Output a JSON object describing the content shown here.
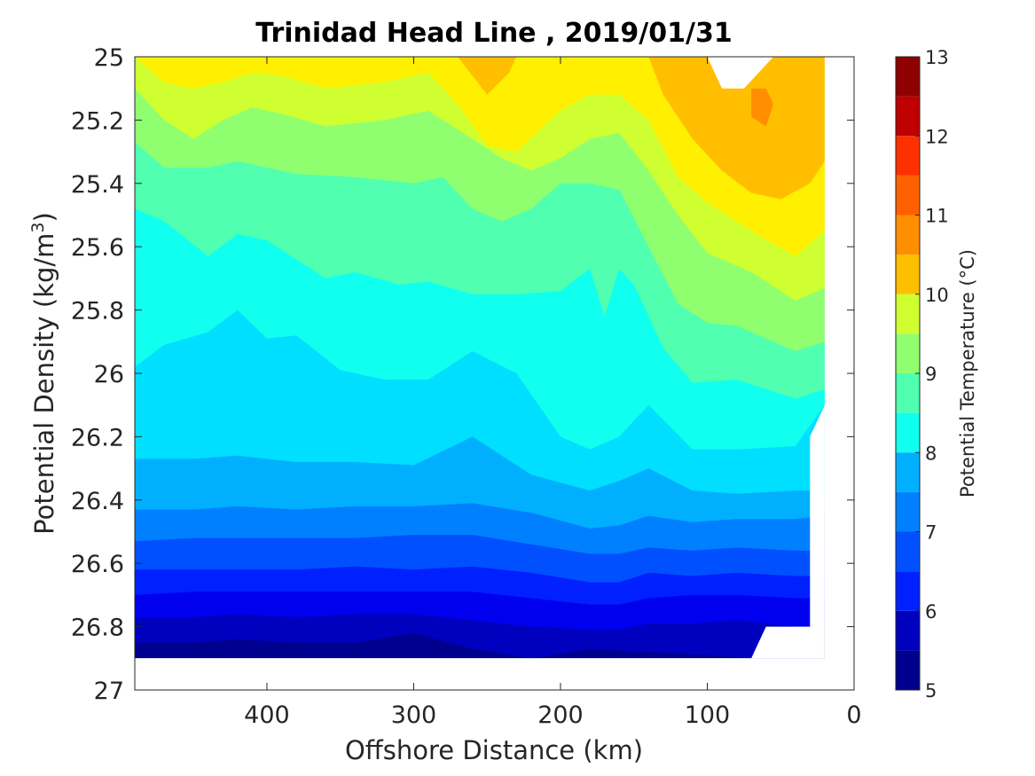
{
  "chart_data": {
    "type": "contour",
    "title": "Trinidad Head Line , 2019/01/31",
    "xlabel": "Offshore Distance (km)",
    "ylabel_main": "Potential Density (kg/m",
    "ylabel_sup": "3",
    "ylabel_tail": ")",
    "colorbar_label": "Potential Temperature (°C)",
    "xlim": [
      490,
      0
    ],
    "x_reversed": true,
    "ylim": [
      25,
      27
    ],
    "y_reversed": true,
    "x_ticks": [
      400,
      300,
      200,
      100,
      0
    ],
    "y_ticks": [
      25,
      25.2,
      25.4,
      25.6,
      25.8,
      26,
      26.2,
      26.4,
      26.6,
      26.8,
      27
    ],
    "y_tick_labels": [
      "25",
      "25.2",
      "25.4",
      "25.6",
      "25.8",
      "26",
      "26.2",
      "26.4",
      "26.6",
      "26.8",
      "27"
    ],
    "colorbar_range": [
      5,
      13
    ],
    "colorbar_ticks": [
      5,
      6,
      7,
      8,
      9,
      10,
      11,
      12,
      13
    ],
    "levels": [
      5,
      5.5,
      6,
      6.5,
      7,
      7.5,
      8,
      8.5,
      9,
      9.5,
      10,
      10.5,
      11,
      11.5,
      12,
      12.5,
      13
    ],
    "level_colors": [
      "#00008f",
      "#0000bf",
      "#0000ef",
      "#0020ff",
      "#0050ff",
      "#0080ff",
      "#00b0ff",
      "#00dfff",
      "#10ffef",
      "#50ffaf",
      "#8fff70",
      "#cfff30",
      "#ffef00",
      "#ffbf00",
      "#ff8f00",
      "#ff6000",
      "#ff3000",
      "#ef0000",
      "#bf0000",
      "#8f0000"
    ],
    "data_extent": {
      "x_min": 20,
      "x_max": 490,
      "y_min": 25,
      "y_max": 26.9
    },
    "isotherms": [
      {
        "value": 5.5,
        "points": [
          [
            490,
            26.85
          ],
          [
            450,
            26.85
          ],
          [
            420,
            26.84
          ],
          [
            380,
            26.85
          ],
          [
            340,
            26.85
          ],
          [
            300,
            26.82
          ],
          [
            260,
            26.87
          ],
          [
            220,
            26.9
          ],
          [
            180,
            26.87
          ],
          [
            140,
            26.88
          ],
          [
            100,
            26.89
          ],
          [
            70,
            26.9
          ],
          [
            20,
            26.9
          ]
        ]
      },
      {
        "value": 6,
        "points": [
          [
            490,
            26.77
          ],
          [
            450,
            26.77
          ],
          [
            420,
            26.76
          ],
          [
            380,
            26.77
          ],
          [
            340,
            26.76
          ],
          [
            300,
            26.76
          ],
          [
            260,
            26.78
          ],
          [
            220,
            26.8
          ],
          [
            180,
            26.81
          ],
          [
            160,
            26.81
          ],
          [
            140,
            26.79
          ],
          [
            110,
            26.79
          ],
          [
            80,
            26.78
          ],
          [
            40,
            26.8
          ],
          [
            20,
            26.8
          ]
        ]
      },
      {
        "value": 6.5,
        "points": [
          [
            490,
            26.7
          ],
          [
            450,
            26.69
          ],
          [
            420,
            26.69
          ],
          [
            380,
            26.69
          ],
          [
            340,
            26.69
          ],
          [
            300,
            26.69
          ],
          [
            260,
            26.69
          ],
          [
            220,
            26.71
          ],
          [
            180,
            26.73
          ],
          [
            160,
            26.73
          ],
          [
            140,
            26.71
          ],
          [
            110,
            26.7
          ],
          [
            80,
            26.7
          ],
          [
            40,
            26.71
          ],
          [
            20,
            26.71
          ]
        ]
      },
      {
        "value": 7,
        "points": [
          [
            490,
            26.62
          ],
          [
            450,
            26.62
          ],
          [
            420,
            26.62
          ],
          [
            380,
            26.62
          ],
          [
            340,
            26.61
          ],
          [
            300,
            26.62
          ],
          [
            260,
            26.61
          ],
          [
            220,
            26.63
          ],
          [
            180,
            26.66
          ],
          [
            160,
            26.66
          ],
          [
            140,
            26.63
          ],
          [
            110,
            26.64
          ],
          [
            80,
            26.63
          ],
          [
            40,
            26.64
          ],
          [
            20,
            26.64
          ]
        ]
      },
      {
        "value": 7.5,
        "points": [
          [
            490,
            26.53
          ],
          [
            450,
            26.52
          ],
          [
            420,
            26.52
          ],
          [
            380,
            26.52
          ],
          [
            340,
            26.52
          ],
          [
            300,
            26.51
          ],
          [
            260,
            26.51
          ],
          [
            220,
            26.54
          ],
          [
            180,
            26.57
          ],
          [
            160,
            26.57
          ],
          [
            140,
            26.55
          ],
          [
            110,
            26.56
          ],
          [
            80,
            26.55
          ],
          [
            40,
            26.56
          ],
          [
            20,
            26.56
          ]
        ]
      },
      {
        "value": 8,
        "points": [
          [
            490,
            26.43
          ],
          [
            450,
            26.43
          ],
          [
            420,
            26.42
          ],
          [
            380,
            26.43
          ],
          [
            340,
            26.42
          ],
          [
            300,
            26.42
          ],
          [
            260,
            26.41
          ],
          [
            220,
            26.44
          ],
          [
            180,
            26.49
          ],
          [
            160,
            26.48
          ],
          [
            140,
            26.45
          ],
          [
            110,
            26.47
          ],
          [
            80,
            26.46
          ],
          [
            40,
            26.46
          ],
          [
            20,
            26.45
          ]
        ]
      },
      {
        "value": 8.5,
        "points": [
          [
            490,
            26.27
          ],
          [
            450,
            26.27
          ],
          [
            420,
            26.26
          ],
          [
            380,
            26.28
          ],
          [
            340,
            26.28
          ],
          [
            300,
            26.29
          ],
          [
            260,
            26.2
          ],
          [
            220,
            26.32
          ],
          [
            180,
            26.37
          ],
          [
            160,
            26.34
          ],
          [
            140,
            26.3
          ],
          [
            110,
            26.37
          ],
          [
            80,
            26.38
          ],
          [
            40,
            26.37
          ],
          [
            20,
            26.37
          ]
        ]
      },
      {
        "value": 9,
        "points": [
          [
            490,
            25.98
          ],
          [
            470,
            25.91
          ],
          [
            440,
            25.87
          ],
          [
            420,
            25.8
          ],
          [
            400,
            25.89
          ],
          [
            380,
            25.88
          ],
          [
            350,
            25.99
          ],
          [
            320,
            26.02
          ],
          [
            290,
            26.02
          ],
          [
            260,
            25.93
          ],
          [
            230,
            26
          ],
          [
            200,
            26.2
          ],
          [
            180,
            26.24
          ],
          [
            160,
            26.2
          ],
          [
            140,
            26.1
          ],
          [
            110,
            26.24
          ],
          [
            80,
            26.24
          ],
          [
            40,
            26.23
          ],
          [
            20,
            26.1
          ]
        ]
      },
      {
        "value": 9.5,
        "points": [
          [
            490,
            25.48
          ],
          [
            470,
            25.52
          ],
          [
            440,
            25.63
          ],
          [
            420,
            25.56
          ],
          [
            400,
            25.58
          ],
          [
            380,
            25.64
          ],
          [
            360,
            25.7
          ],
          [
            340,
            25.68
          ],
          [
            310,
            25.72
          ],
          [
            290,
            25.71
          ],
          [
            260,
            25.75
          ],
          [
            230,
            25.75
          ],
          [
            200,
            25.74
          ],
          [
            180,
            25.67
          ],
          [
            170,
            25.82
          ],
          [
            160,
            25.67
          ],
          [
            150,
            25.72
          ],
          [
            130,
            25.92
          ],
          [
            110,
            26.03
          ],
          [
            80,
            26.02
          ],
          [
            40,
            26.08
          ],
          [
            20,
            26.05
          ]
        ]
      },
      {
        "value": 10,
        "points": [
          [
            490,
            25.27
          ],
          [
            470,
            25.35
          ],
          [
            440,
            25.35
          ],
          [
            420,
            25.33
          ],
          [
            400,
            25.35
          ],
          [
            380,
            25.37
          ],
          [
            340,
            25.38
          ],
          [
            300,
            25.4
          ],
          [
            280,
            25.38
          ],
          [
            260,
            25.48
          ],
          [
            240,
            25.52
          ],
          [
            220,
            25.48
          ],
          [
            200,
            25.4
          ],
          [
            180,
            25.4
          ],
          [
            160,
            25.42
          ],
          [
            140,
            25.6
          ],
          [
            120,
            25.78
          ],
          [
            100,
            25.84
          ],
          [
            80,
            25.85
          ],
          [
            40,
            25.93
          ],
          [
            20,
            25.9
          ]
        ]
      },
      {
        "value": 10.5,
        "points": [
          [
            490,
            25.1
          ],
          [
            470,
            25.2
          ],
          [
            450,
            25.26
          ],
          [
            430,
            25.2
          ],
          [
            410,
            25.16
          ],
          [
            390,
            25.18
          ],
          [
            360,
            25.22
          ],
          [
            320,
            25.2
          ],
          [
            290,
            25.17
          ],
          [
            260,
            25.26
          ],
          [
            240,
            25.32
          ],
          [
            220,
            25.36
          ],
          [
            200,
            25.32
          ],
          [
            180,
            25.26
          ],
          [
            160,
            25.24
          ],
          [
            140,
            25.36
          ],
          [
            120,
            25.5
          ],
          [
            100,
            25.62
          ],
          [
            70,
            25.68
          ],
          [
            40,
            25.77
          ],
          [
            20,
            25.73
          ]
        ]
      },
      {
        "value": 11,
        "points": [
          [
            490,
            25
          ],
          [
            470,
            25.08
          ],
          [
            450,
            25.1
          ],
          [
            430,
            25.08
          ],
          [
            410,
            25.05
          ],
          [
            390,
            25.06
          ],
          [
            360,
            25.1
          ],
          [
            320,
            25.08
          ],
          [
            290,
            25.05
          ],
          [
            270,
            25.15
          ],
          [
            250,
            25.28
          ],
          [
            230,
            25.3
          ],
          [
            200,
            25.17
          ],
          [
            180,
            25.12
          ],
          [
            160,
            25.12
          ],
          [
            140,
            25.2
          ],
          [
            120,
            25.38
          ],
          [
            100,
            25.46
          ],
          [
            70,
            25.55
          ],
          [
            40,
            25.63
          ],
          [
            20,
            25.55
          ]
        ]
      },
      {
        "value": 11.5,
        "points": [
          [
            270,
            25
          ],
          [
            250,
            25.12
          ],
          [
            235,
            25.05
          ],
          [
            230,
            25
          ],
          [
            140,
            25
          ],
          [
            130,
            25.12
          ],
          [
            110,
            25.26
          ],
          [
            90,
            25.36
          ],
          [
            70,
            25.43
          ],
          [
            50,
            25.45
          ],
          [
            30,
            25.4
          ],
          [
            20,
            25.33
          ]
        ]
      },
      {
        "value": 12,
        "points": [
          [
            70,
            25.1
          ],
          [
            60,
            25.1
          ],
          [
            55,
            25.15
          ],
          [
            60,
            25.22
          ],
          [
            70,
            25.19
          ],
          [
            70,
            25.1
          ]
        ]
      }
    ],
    "blank_regions": [
      {
        "name": "top-notch",
        "points": [
          [
            100,
            25
          ],
          [
            55,
            25
          ],
          [
            75,
            25.1
          ],
          [
            90,
            25.1
          ]
        ]
      },
      {
        "name": "right-edge",
        "points": [
          [
            20,
            25
          ],
          [
            0,
            25
          ],
          [
            0,
            27
          ],
          [
            20,
            27
          ]
        ]
      },
      {
        "name": "bottom-right",
        "points": [
          [
            70,
            26.9
          ],
          [
            60,
            26.8
          ],
          [
            30,
            26.8
          ],
          [
            30,
            26.2
          ],
          [
            20,
            26.1
          ],
          [
            20,
            26.9
          ]
        ]
      },
      {
        "name": "bottom-strip",
        "points": [
          [
            490,
            26.9
          ],
          [
            0,
            26.9
          ],
          [
            0,
            27
          ],
          [
            490,
            27
          ]
        ]
      }
    ]
  }
}
